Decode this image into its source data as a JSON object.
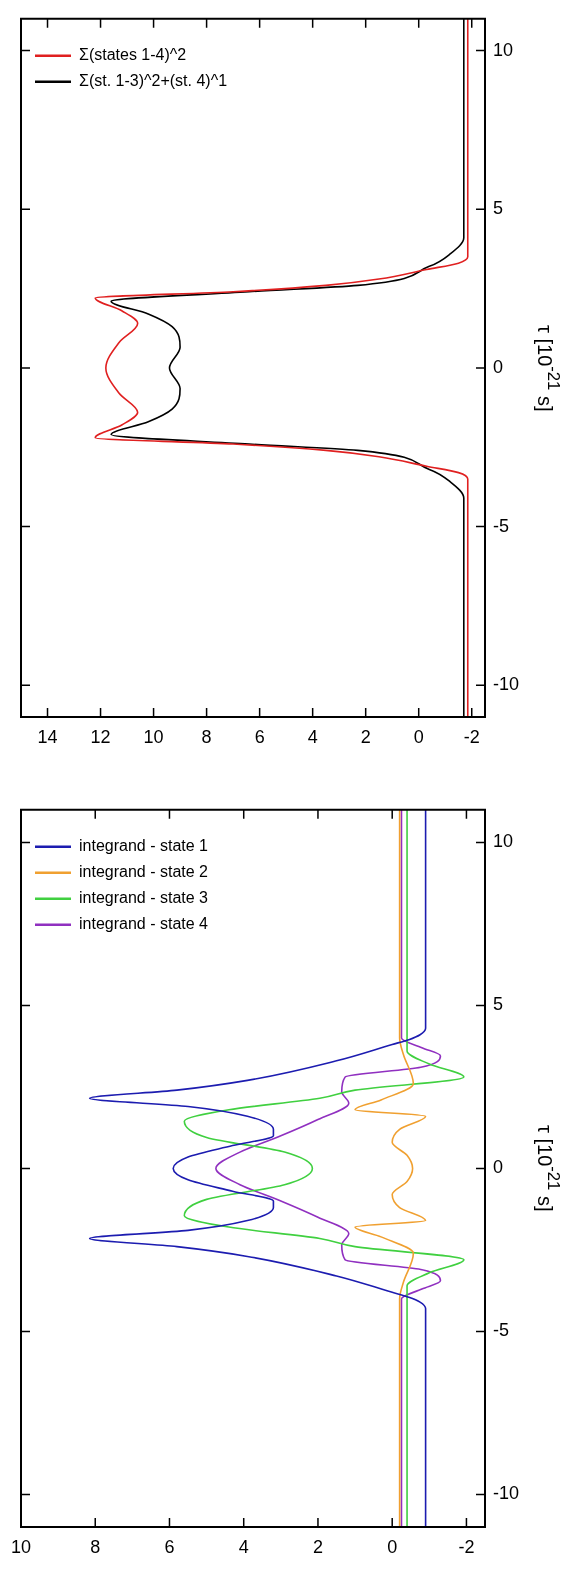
{
  "chart_data": [
    {
      "type": "line",
      "ylabel": "τ [10$^{-21}$ s]",
      "ylim": [
        -11,
        11
      ],
      "yticks": [
        -10,
        -5,
        0,
        5,
        10
      ],
      "xlim": [
        15,
        -2.5
      ],
      "xticks": [
        -2,
        0,
        2,
        4,
        6,
        8,
        10,
        12,
        14
      ],
      "legend": "top left",
      "series": [
        {
          "name": "Σ(states 1-4)^2",
          "color": "#e02020",
          "values": [
            -11,
            -3.5,
            -3.3,
            -3.1,
            -2.8,
            -2.6,
            -2.4,
            -2.2,
            -1.8,
            -1.4,
            -0.8,
            0,
            0.8,
            1.4,
            1.8,
            2.2,
            2.4,
            2.6,
            2.8,
            3.1,
            3.3,
            3.5,
            11
          ],
          "x": [
            -1.85,
            -1.85,
            -1.5,
            -0.3,
            1.5,
            3.5,
            7,
            12.2,
            11.2,
            10.6,
            11.3,
            11.8,
            11.3,
            10.6,
            11.2,
            12.2,
            7,
            3.5,
            1.5,
            -0.3,
            -1.5,
            -1.85,
            -1.85
          ]
        },
        {
          "name": "Σ(st. 1-3)^2+(st. 4)^1",
          "color": "#000000",
          "values": [
            -11,
            -4.1,
            -3.6,
            -3.2,
            -2.6,
            -2.4,
            -2.1,
            -1.7,
            -1.3,
            -0.65,
            0,
            0.65,
            1.3,
            1.7,
            2.1,
            2.4,
            2.6,
            3.2,
            3.6,
            4.1,
            11
          ],
          "x": [
            -1.7,
            -1.7,
            -1.2,
            -0.4,
            2.3,
            6.4,
            11.6,
            10.2,
            9.3,
            9.0,
            9.4,
            9.0,
            9.3,
            10.2,
            11.6,
            6.4,
            2.3,
            -0.4,
            -1.2,
            -1.7,
            -1.7
          ]
        }
      ]
    },
    {
      "type": "line",
      "ylabel": "τ [10$^{-21}$ s]",
      "ylim": [
        -11,
        11
      ],
      "yticks": [
        -10,
        -5,
        0,
        5,
        10
      ],
      "xlim": [
        10,
        -2.5
      ],
      "xticks": [
        -2,
        0,
        2,
        4,
        6,
        8,
        10
      ],
      "legend": "top left",
      "series": [
        {
          "name": "integrand - state 1",
          "color": "#1c1cb0",
          "values": [
            -11,
            -4.3,
            -4.1,
            -3.95,
            -3.8,
            -3.3,
            -2.7,
            -2.4,
            -2.15,
            -1.9,
            -1.6,
            -1.2,
            -1.0,
            -0.7,
            -0.35,
            0,
            0.35,
            0.7,
            1.0,
            1.2,
            1.6,
            1.9,
            2.15,
            2.4,
            2.7,
            3.3,
            3.8,
            3.95,
            4.1,
            4.3,
            11
          ],
          "x": [
            -0.9,
            -0.9,
            -0.75,
            -0.45,
            0,
            1.5,
            3.9,
            5.8,
            8.15,
            5.5,
            3.9,
            3.2,
            3.2,
            4.3,
            5.5,
            5.9,
            5.5,
            4.3,
            3.2,
            3.2,
            3.9,
            5.5,
            8.15,
            5.8,
            3.9,
            1.5,
            0,
            -0.45,
            -0.75,
            -0.9,
            -0.9
          ]
        },
        {
          "name": "integrand - state 2",
          "color": "#f0a030",
          "values": [
            -11,
            -4,
            -3.5,
            -2.6,
            -2.1,
            -1.8,
            -1.6,
            -1.2,
            -0.8,
            -0.4,
            0,
            0.4,
            0.8,
            1.2,
            1.6,
            1.8,
            2.1,
            2.6,
            3.5,
            4,
            11
          ],
          "x": [
            -0.2,
            -0.2,
            -0.3,
            -0.57,
            0.3,
            1.0,
            -0.9,
            -0.2,
            0,
            -0.4,
            -0.55,
            -0.4,
            0,
            -0.2,
            -0.9,
            1.0,
            0.3,
            -0.57,
            -0.3,
            -0.2,
            -0.2
          ]
        },
        {
          "name": "integrand - state 3",
          "color": "#40d040",
          "values": [
            -11,
            -3.6,
            -3.2,
            -2.8,
            -2.4,
            -2.15,
            -1.8,
            -1.45,
            -0.95,
            -0.5,
            0,
            0.5,
            0.95,
            1.45,
            1.8,
            2.15,
            2.4,
            2.8,
            3.2,
            3.6,
            11
          ],
          "x": [
            -0.4,
            -0.4,
            -1.0,
            -1.93,
            1.0,
            1.95,
            4.4,
            5.6,
            5.0,
            2.9,
            2.15,
            2.9,
            5.0,
            5.6,
            4.4,
            1.95,
            1.0,
            -1.93,
            -1.0,
            -0.4,
            -0.4
          ]
        },
        {
          "name": "integrand - state 4",
          "color": "#9030c0",
          "values": [
            -11,
            -4,
            -3.7,
            -3.45,
            -3.1,
            -2.8,
            -2.35,
            -2.0,
            -1.5,
            -1.0,
            -0.5,
            0,
            0.5,
            1.0,
            1.5,
            2.0,
            2.35,
            2.8,
            3.1,
            3.45,
            3.7,
            4,
            11
          ],
          "x": [
            -0.25,
            -0.25,
            -0.8,
            -1.3,
            -0.77,
            1.27,
            1.36,
            1.17,
            2.0,
            3.0,
            4.1,
            4.75,
            4.1,
            3.0,
            2.0,
            1.17,
            1.36,
            1.27,
            -0.77,
            -1.3,
            -0.8,
            -0.25,
            -0.25
          ]
        }
      ]
    }
  ]
}
